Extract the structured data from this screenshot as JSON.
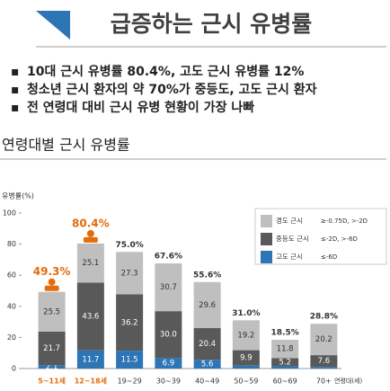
{
  "header": {
    "title": "급증하는 근시 유병률",
    "bullets": [
      "10대 근시 유병률 80.4%, 고도 근시 유병률 12%",
      "청소년 근시 환자의 약 70%가 중등도, 고도 근시 환자",
      "전 연령대 대비 근시 유병 현황이 가장 나빠"
    ]
  },
  "chart_data": {
    "type": "stacked_bar",
    "title": "연령대별 근시 유병률",
    "y_label": "유병률(%)",
    "x_label": "연령대(세)",
    "categories": [
      "5~11세",
      "12~18세",
      "19~29",
      "30~39",
      "40~49",
      "50~59",
      "60~69",
      "70+"
    ],
    "highlight": [
      true,
      true,
      false,
      false,
      false,
      false,
      false,
      false
    ],
    "highlight_color": "#e46c0a",
    "series": [
      {
        "name": "고도 근시",
        "criterion": "≤-6D",
        "color": "#2e75b6",
        "values": [
          2.1,
          11.7,
          11.5,
          6.9,
          5.6,
          1.9,
          1.5,
          1.0
        ],
        "value_labels": [
          "2.1",
          "11.7",
          "11.5",
          "6.9",
          "5.6",
          null,
          null,
          null
        ]
      },
      {
        "name": "중등도 근시",
        "criterion": "≤-2D, >-6D",
        "color": "#595959",
        "values": [
          21.7,
          43.6,
          36.2,
          30.0,
          20.4,
          9.9,
          5.2,
          7.6
        ],
        "value_labels": [
          "21.7",
          "43.6",
          "36.2",
          "30.0",
          "20.4",
          "9.9",
          "5.2",
          "7.6"
        ]
      },
      {
        "name": "경도 근시",
        "criterion": "≥-0.75D, >-2D",
        "color": "#bfbfbf",
        "values": [
          25.5,
          25.1,
          27.3,
          30.7,
          29.6,
          19.2,
          11.8,
          20.2
        ],
        "value_labels": [
          "25.5",
          "25.1",
          "27.3",
          "30.7",
          "29.6",
          "19.2",
          "11.8",
          "20.2"
        ]
      }
    ],
    "totals": [
      49.3,
      80.4,
      75.0,
      67.6,
      55.6,
      31.0,
      18.5,
      28.8
    ],
    "total_labels": [
      "49.3%",
      "80.4%",
      "75.0%",
      "67.6%",
      "55.6%",
      "31.0%",
      "18.5%",
      "28.8%"
    ],
    "ylim": [
      0,
      100
    ],
    "yticks": [
      0,
      20,
      40,
      60,
      80,
      100
    ]
  }
}
